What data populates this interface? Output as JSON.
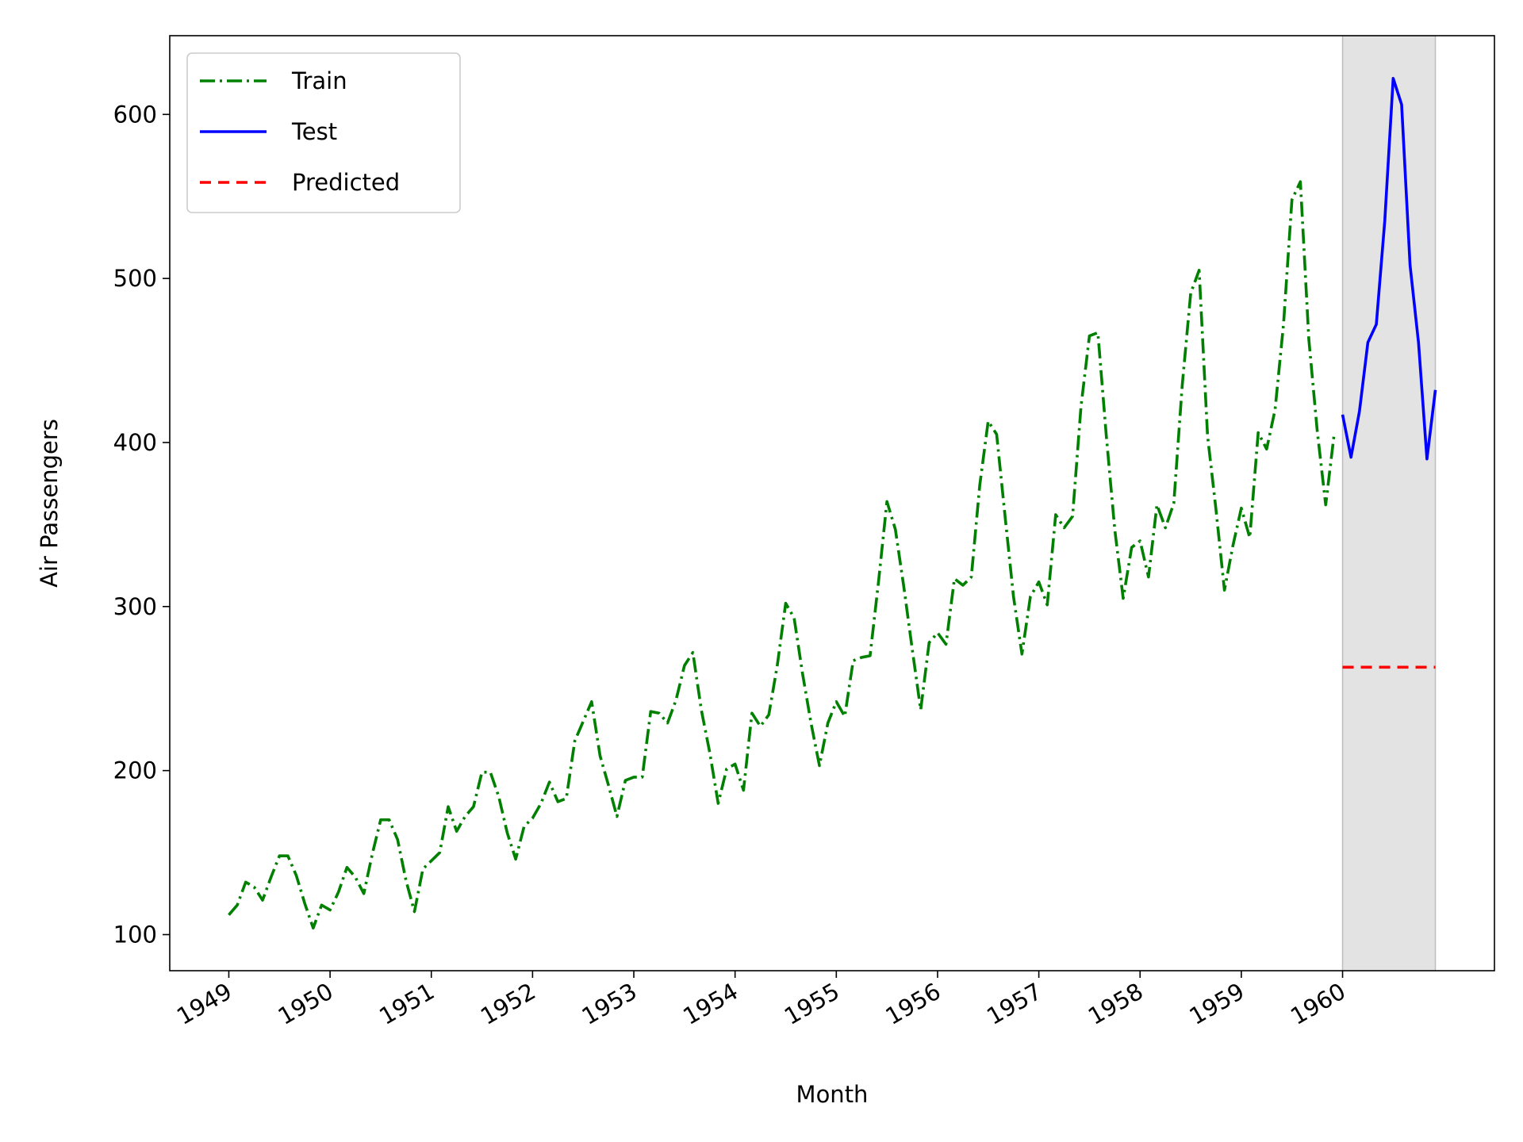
{
  "chart_data": {
    "type": "line",
    "title": "",
    "xlabel": "Month",
    "ylabel": "Air Passengers",
    "xlim": [
      "1948-06",
      "1961-06"
    ],
    "ylim": [
      78,
      648
    ],
    "x_ticks": [
      "1949",
      "1950",
      "1951",
      "1952",
      "1953",
      "1954",
      "1955",
      "1956",
      "1957",
      "1958",
      "1959",
      "1960"
    ],
    "y_ticks": [
      100,
      200,
      300,
      400,
      500,
      600
    ],
    "grid": false,
    "legend": "top-left",
    "shaded_region": {
      "from": "1960-01",
      "to": "1960-12",
      "color": "#d9d9d9"
    },
    "series": [
      {
        "name": "Train",
        "color": "#008000",
        "style": "dashdot",
        "x": [
          "1949-01",
          "1949-02",
          "1949-03",
          "1949-04",
          "1949-05",
          "1949-06",
          "1949-07",
          "1949-08",
          "1949-09",
          "1949-10",
          "1949-11",
          "1949-12",
          "1950-01",
          "1950-02",
          "1950-03",
          "1950-04",
          "1950-05",
          "1950-06",
          "1950-07",
          "1950-08",
          "1950-09",
          "1950-10",
          "1950-11",
          "1950-12",
          "1951-01",
          "1951-02",
          "1951-03",
          "1951-04",
          "1951-05",
          "1951-06",
          "1951-07",
          "1951-08",
          "1951-09",
          "1951-10",
          "1951-11",
          "1951-12",
          "1952-01",
          "1952-02",
          "1952-03",
          "1952-04",
          "1952-05",
          "1952-06",
          "1952-07",
          "1952-08",
          "1952-09",
          "1952-10",
          "1952-11",
          "1952-12",
          "1953-01",
          "1953-02",
          "1953-03",
          "1953-04",
          "1953-05",
          "1953-06",
          "1953-07",
          "1953-08",
          "1953-09",
          "1953-10",
          "1953-11",
          "1953-12",
          "1954-01",
          "1954-02",
          "1954-03",
          "1954-04",
          "1954-05",
          "1954-06",
          "1954-07",
          "1954-08",
          "1954-09",
          "1954-10",
          "1954-11",
          "1954-12",
          "1955-01",
          "1955-02",
          "1955-03",
          "1955-04",
          "1955-05",
          "1955-06",
          "1955-07",
          "1955-08",
          "1955-09",
          "1955-10",
          "1955-11",
          "1955-12",
          "1956-01",
          "1956-02",
          "1956-03",
          "1956-04",
          "1956-05",
          "1956-06",
          "1956-07",
          "1956-08",
          "1956-09",
          "1956-10",
          "1956-11",
          "1956-12",
          "1957-01",
          "1957-02",
          "1957-03",
          "1957-04",
          "1957-05",
          "1957-06",
          "1957-07",
          "1957-08",
          "1957-09",
          "1957-10",
          "1957-11",
          "1957-12",
          "1958-01",
          "1958-02",
          "1958-03",
          "1958-04",
          "1958-05",
          "1958-06",
          "1958-07",
          "1958-08",
          "1958-09",
          "1958-10",
          "1958-11",
          "1958-12",
          "1959-01",
          "1959-02",
          "1959-03",
          "1959-04",
          "1959-05",
          "1959-06",
          "1959-07",
          "1959-08",
          "1959-09",
          "1959-10",
          "1959-11",
          "1959-12"
        ],
        "values": [
          112,
          118,
          132,
          129,
          121,
          135,
          148,
          148,
          136,
          119,
          104,
          118,
          115,
          126,
          141,
          135,
          125,
          149,
          170,
          170,
          158,
          133,
          114,
          140,
          145,
          150,
          178,
          163,
          172,
          178,
          199,
          199,
          184,
          162,
          146,
          166,
          171,
          180,
          193,
          181,
          183,
          218,
          230,
          242,
          209,
          191,
          172,
          194,
          196,
          196,
          236,
          235,
          229,
          243,
          264,
          272,
          237,
          211,
          180,
          201,
          204,
          188,
          235,
          227,
          234,
          264,
          302,
          293,
          259,
          229,
          203,
          229,
          242,
          233,
          267,
          269,
          270,
          315,
          364,
          347,
          312,
          274,
          237,
          278,
          284,
          277,
          317,
          313,
          318,
          374,
          413,
          405,
          355,
          306,
          271,
          306,
          315,
          301,
          356,
          348,
          355,
          422,
          465,
          467,
          404,
          347,
          305,
          336,
          340,
          318,
          362,
          348,
          363,
          435,
          491,
          505,
          404,
          359,
          310,
          337,
          360,
          342,
          406,
          396,
          420,
          472,
          548,
          559,
          463,
          407,
          362,
          405
        ]
      },
      {
        "name": "Test",
        "color": "#0000ff",
        "style": "solid",
        "x": [
          "1960-01",
          "1960-02",
          "1960-03",
          "1960-04",
          "1960-05",
          "1960-06",
          "1960-07",
          "1960-08",
          "1960-09",
          "1960-10",
          "1960-11",
          "1960-12"
        ],
        "values": [
          417,
          391,
          419,
          461,
          472,
          535,
          622,
          606,
          508,
          461,
          390,
          432
        ]
      },
      {
        "name": "Predicted",
        "color": "#ff0000",
        "style": "dashed",
        "x": [
          "1960-01",
          "1960-12"
        ],
        "values": [
          263,
          263
        ]
      }
    ]
  }
}
